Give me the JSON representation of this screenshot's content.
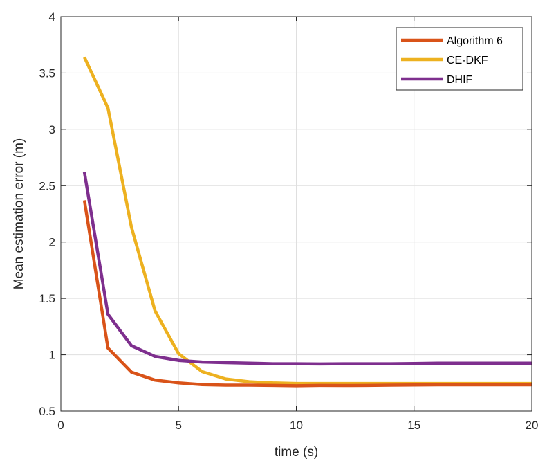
{
  "chart_data": {
    "type": "line",
    "xlabel": "time (s)",
    "ylabel": "Mean estimation error (m)",
    "xlim": [
      0,
      20
    ],
    "ylim": [
      0.5,
      4
    ],
    "xticks": [
      0,
      5,
      10,
      15,
      20
    ],
    "yticks": [
      0.5,
      1,
      1.5,
      2,
      2.5,
      3,
      3.5,
      4
    ],
    "xtick_labels": [
      "0",
      "5",
      "10",
      "15",
      "20"
    ],
    "ytick_labels": [
      "0.5",
      "1",
      "1.5",
      "2",
      "2.5",
      "3",
      "3.5",
      "4"
    ],
    "grid": true,
    "legend_position": "top-right",
    "x": [
      1,
      2,
      3,
      4,
      5,
      6,
      7,
      8,
      9,
      10,
      11,
      12,
      13,
      14,
      15,
      16,
      17,
      18,
      19,
      20
    ],
    "series": [
      {
        "name": "Algorithm 6",
        "color": "#D95319",
        "values": [
          2.37,
          1.06,
          0.845,
          0.775,
          0.75,
          0.735,
          0.73,
          0.73,
          0.728,
          0.725,
          0.728,
          0.727,
          0.728,
          0.73,
          0.732,
          0.733,
          0.733,
          0.733,
          0.733,
          0.733
        ]
      },
      {
        "name": "CE-DKF",
        "color": "#EDB120",
        "values": [
          3.64,
          3.19,
          2.13,
          1.39,
          1.01,
          0.85,
          0.785,
          0.76,
          0.75,
          0.745,
          0.745,
          0.745,
          0.745,
          0.745,
          0.745,
          0.745,
          0.745,
          0.745,
          0.745,
          0.745
        ]
      },
      {
        "name": "DHIF",
        "color": "#7E2F8E",
        "values": [
          2.62,
          1.36,
          1.08,
          0.985,
          0.95,
          0.935,
          0.93,
          0.925,
          0.92,
          0.92,
          0.918,
          0.92,
          0.92,
          0.92,
          0.922,
          0.925,
          0.925,
          0.925,
          0.925,
          0.925
        ]
      }
    ]
  }
}
